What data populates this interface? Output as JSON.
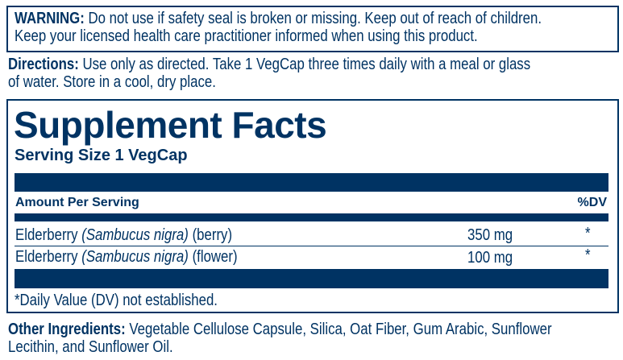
{
  "warning": {
    "label": "WARNING:",
    "line1": "Do not use if safety seal is broken or missing. Keep out of reach of children.",
    "line2": "Keep your licensed health care practitioner informed when using this product."
  },
  "directions": {
    "label": "Directions:",
    "line1": "Use only as directed. Take 1 VegCap three times daily with a meal or glass",
    "line2": "of water. Store in a cool, dry place."
  },
  "facts": {
    "title": "Supplement Facts",
    "serving_size": "Serving Size 1 VegCap",
    "amount_header": "Amount Per Serving",
    "dv_header": "%DV",
    "rows": [
      {
        "name": "Elderberry",
        "latin": "(Sambucus nigra)",
        "part": "(berry)",
        "amount": "350 mg",
        "dv": "*"
      },
      {
        "name": "Elderberry",
        "latin": "(Sambucus nigra)",
        "part": "(flower)",
        "amount": "100 mg",
        "dv": "*"
      }
    ],
    "footnote": "*Daily Value (DV) not established."
  },
  "other": {
    "label": "Other Ingredients:",
    "line1": "Vegetable Cellulose Capsule, Silica, Oat Fiber, Gum Arabic, Sunflower",
    "line2": "Lecithin, and Sunflower Oil."
  },
  "colors": {
    "ink": "#003363"
  }
}
